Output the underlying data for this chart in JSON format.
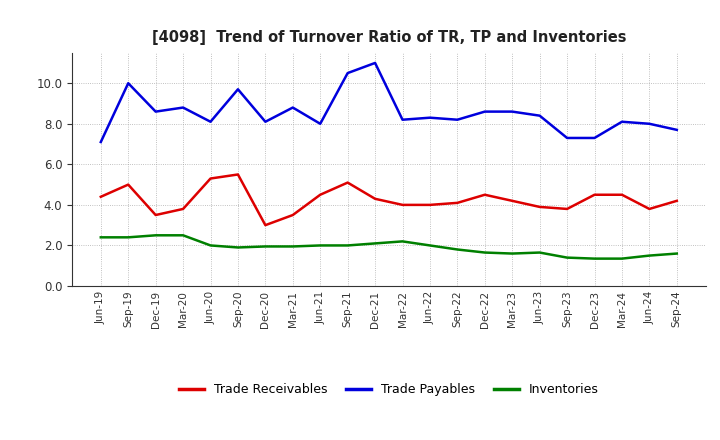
{
  "title": "[4098]  Trend of Turnover Ratio of TR, TP and Inventories",
  "x_labels": [
    "Jun-19",
    "Sep-19",
    "Dec-19",
    "Mar-20",
    "Jun-20",
    "Sep-20",
    "Dec-20",
    "Mar-21",
    "Jun-21",
    "Sep-21",
    "Dec-21",
    "Mar-22",
    "Jun-22",
    "Sep-22",
    "Dec-22",
    "Mar-23",
    "Jun-23",
    "Sep-23",
    "Dec-23",
    "Mar-24",
    "Jun-24",
    "Sep-24"
  ],
  "trade_receivables": [
    4.4,
    5.0,
    3.5,
    3.8,
    5.3,
    5.5,
    3.0,
    3.5,
    4.5,
    5.1,
    4.3,
    4.0,
    4.0,
    4.1,
    4.5,
    4.2,
    3.9,
    3.8,
    4.5,
    4.5,
    3.8,
    4.2
  ],
  "trade_payables": [
    7.1,
    10.0,
    8.6,
    8.8,
    8.1,
    9.7,
    8.1,
    8.8,
    8.0,
    10.5,
    11.0,
    8.2,
    8.3,
    8.2,
    8.6,
    8.6,
    8.4,
    7.3,
    7.3,
    8.1,
    8.0,
    7.7
  ],
  "inventories": [
    2.4,
    2.4,
    2.5,
    2.5,
    2.0,
    1.9,
    1.95,
    1.95,
    2.0,
    2.0,
    2.1,
    2.2,
    2.0,
    1.8,
    1.65,
    1.6,
    1.65,
    1.4,
    1.35,
    1.35,
    1.5,
    1.6
  ],
  "ylim": [
    0.0,
    11.5
  ],
  "yticks": [
    0.0,
    2.0,
    4.0,
    6.0,
    8.0,
    10.0
  ],
  "colors": {
    "trade_receivables": "#dd0000",
    "trade_payables": "#0000dd",
    "inventories": "#008000"
  },
  "legend_labels": [
    "Trade Receivables",
    "Trade Payables",
    "Inventories"
  ],
  "background_color": "#ffffff",
  "grid_color": "#999999"
}
